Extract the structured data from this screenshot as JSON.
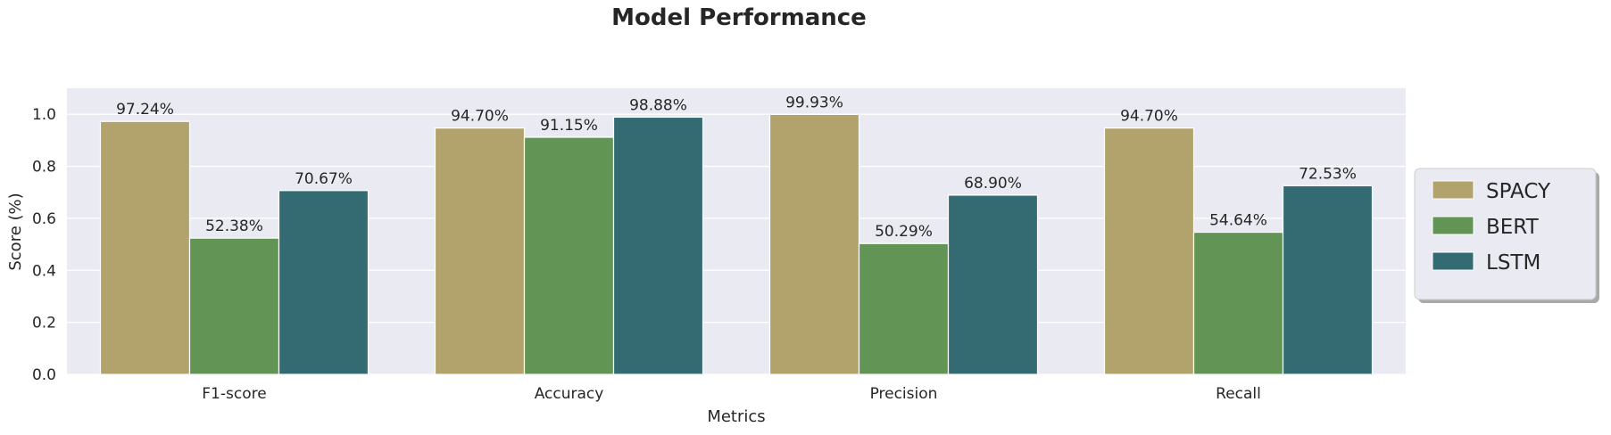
{
  "chart_data": {
    "type": "bar",
    "title": "Model Performance",
    "xlabel": "Metrics",
    "ylabel": "Score (%)",
    "categories": [
      "F1-score",
      "Accuracy",
      "Precision",
      "Recall"
    ],
    "ylim": [
      0,
      1.1
    ],
    "yticks": [
      "0.0",
      "0.2",
      "0.4",
      "0.6",
      "0.8",
      "1.0"
    ],
    "grid": true,
    "legend_position": "right",
    "series": [
      {
        "name": "SPACY",
        "color": "#b1a36b",
        "values": [
          0.9724,
          0.947,
          0.9993,
          0.947
        ],
        "labels": [
          "97.24%",
          "94.70%",
          "99.93%",
          "94.70%"
        ]
      },
      {
        "name": "BERT",
        "color": "#629555",
        "values": [
          0.5238,
          0.9115,
          0.5029,
          0.5464
        ],
        "labels": [
          "52.38%",
          "91.15%",
          "50.29%",
          "54.64%"
        ]
      },
      {
        "name": "LSTM",
        "color": "#346b73",
        "values": [
          0.7067,
          0.9888,
          0.689,
          0.7253
        ],
        "labels": [
          "70.67%",
          "98.88%",
          "68.90%",
          "72.53%"
        ]
      }
    ]
  }
}
